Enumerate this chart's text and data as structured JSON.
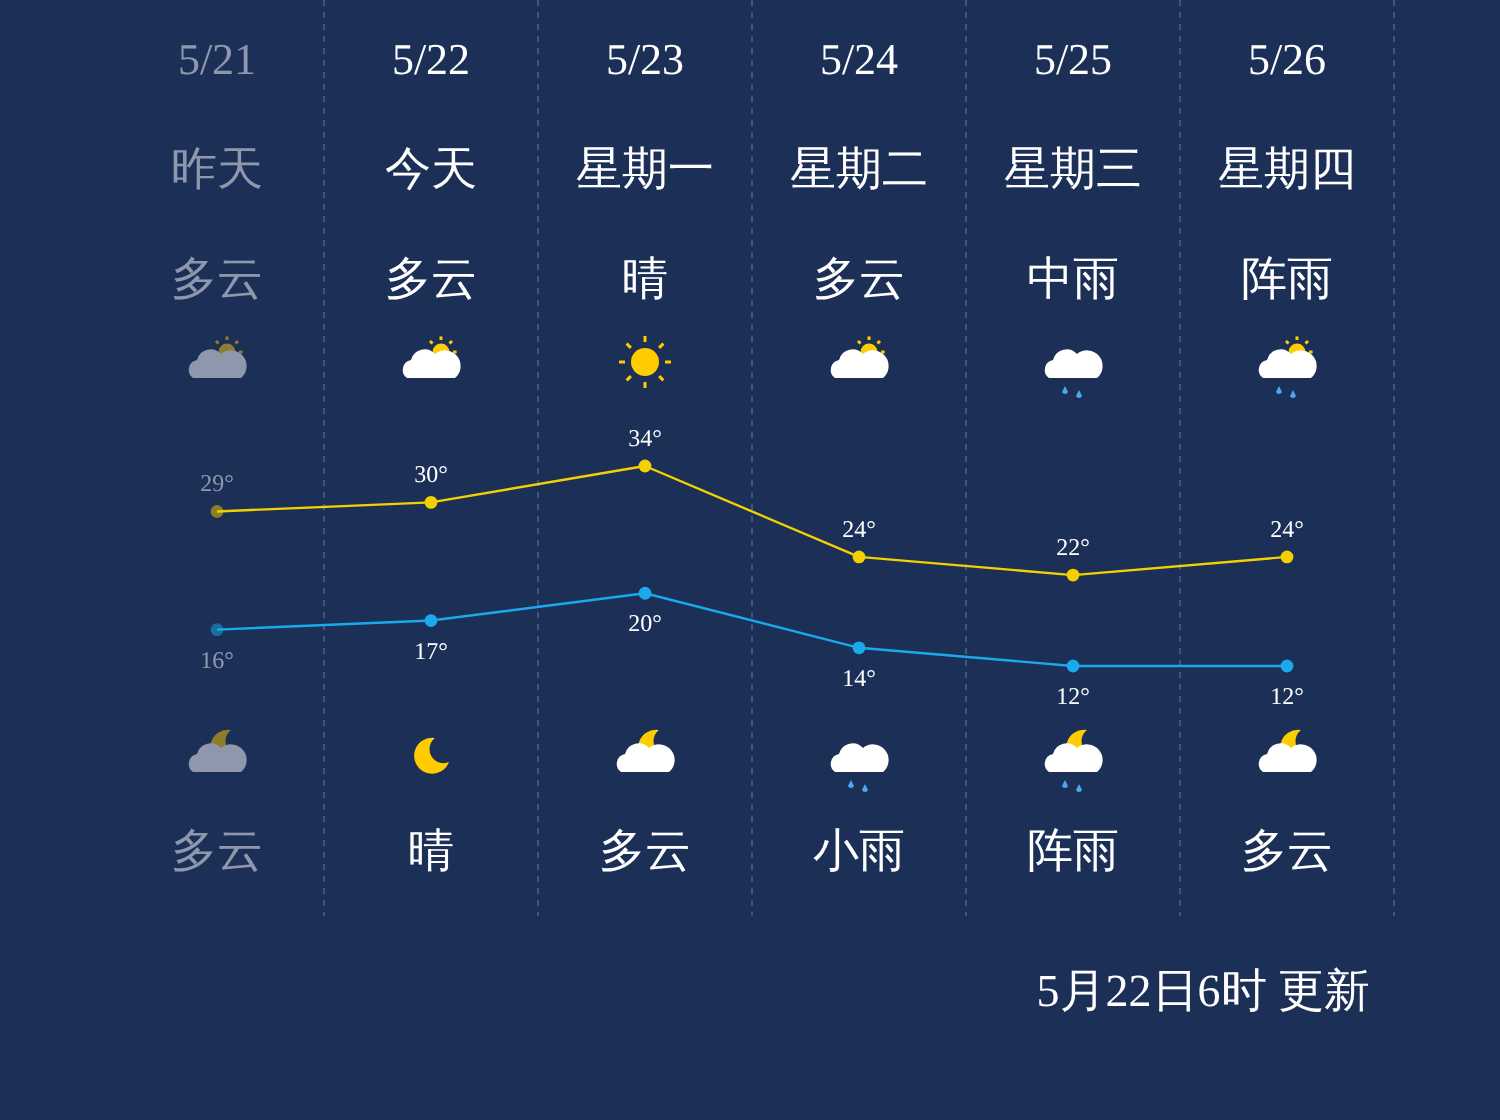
{
  "chart_data": {
    "type": "line",
    "categories": [
      "5/21",
      "5/22",
      "5/23",
      "5/24",
      "5/25",
      "5/26"
    ],
    "series": [
      {
        "color": "#f5d000",
        "values": [
          29,
          30,
          34,
          24,
          22,
          24
        ],
        "value_labels": [
          "29°",
          "30°",
          "34°",
          "24°",
          "22°",
          "24°"
        ]
      },
      {
        "color": "#1aa9ec",
        "values": [
          16,
          17,
          20,
          14,
          12,
          12
        ],
        "value_labels": [
          "16°",
          "17°",
          "20°",
          "14°",
          "12°",
          "12°"
        ]
      }
    ],
    "marker": "circle",
    "line_style": "solid",
    "annotations": [
      "昨天",
      "多云",
      "多云",
      "今天",
      "多云",
      "晴",
      "星期一",
      "晴",
      "多云",
      "星期二",
      "多云",
      "小雨",
      "星期三",
      "中雨",
      "阵雨",
      "星期四",
      "阵雨",
      "多云",
      "5月22日6时 更新"
    ]
  }
}
